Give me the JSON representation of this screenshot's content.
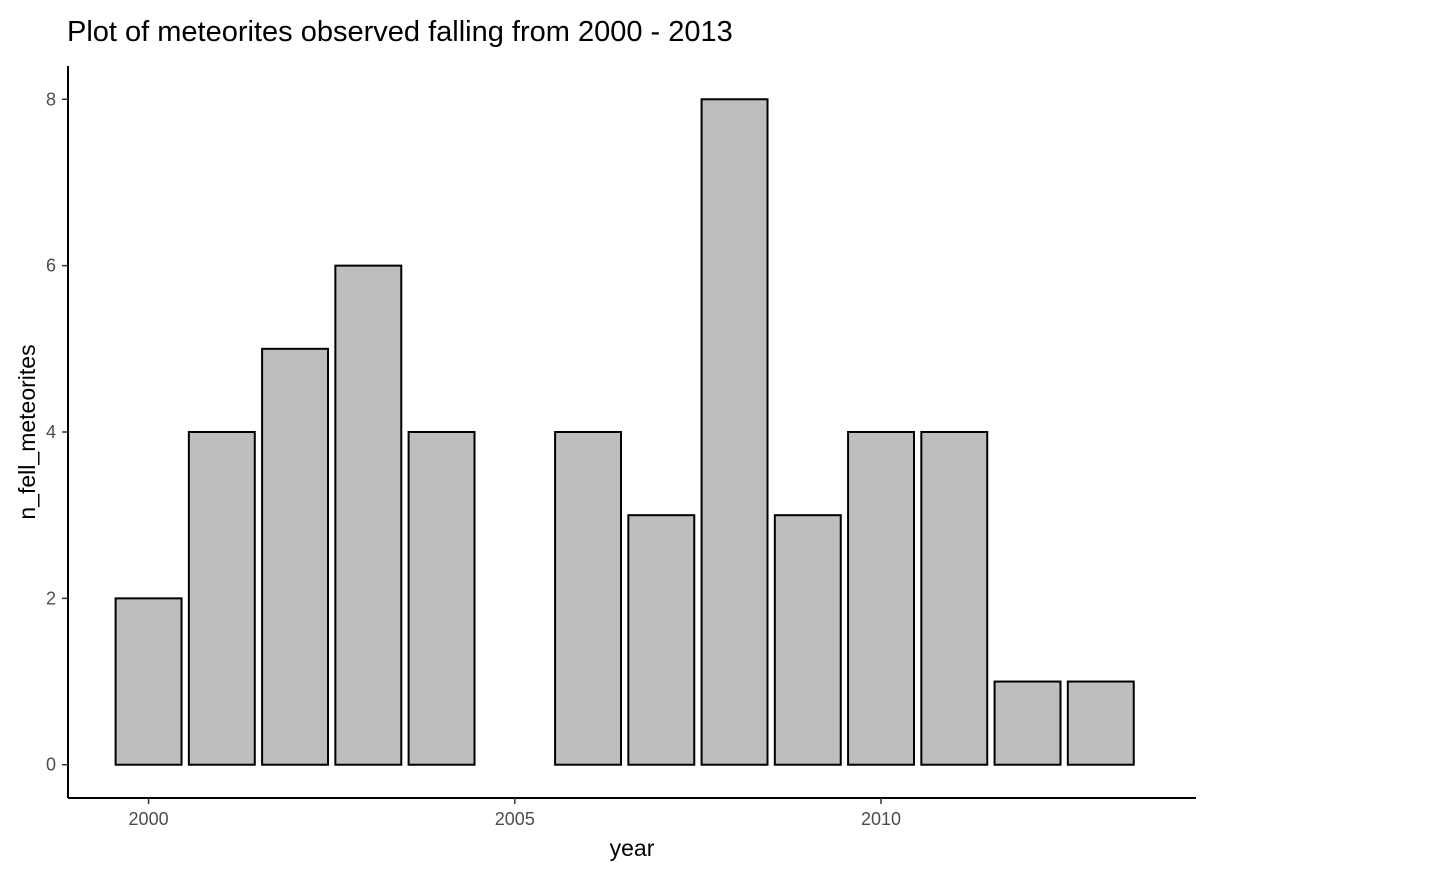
{
  "chart_data": {
    "type": "bar",
    "title": "Plot of meteorites observed falling from 2000 - 2013",
    "xlabel": "year",
    "ylabel": "n_fell_meteorites",
    "x": [
      2000,
      2001,
      2002,
      2003,
      2004,
      2006,
      2007,
      2008,
      2009,
      2010,
      2011,
      2012,
      2013
    ],
    "values": [
      2,
      4,
      5,
      6,
      4,
      4,
      3,
      8,
      3,
      4,
      4,
      1,
      1
    ],
    "xlim": [
      1998.9,
      2014.3
    ],
    "ylim": [
      -0.4,
      8.4
    ],
    "x_ticks": [
      2000,
      2005,
      2010
    ],
    "y_ticks": [
      0,
      2,
      4,
      6,
      8
    ],
    "grid": false,
    "colors": {
      "bar_fill": "#bebebe",
      "bar_stroke": "#000000",
      "axis": "#000000",
      "tick_text": "#4d4d4d"
    }
  }
}
